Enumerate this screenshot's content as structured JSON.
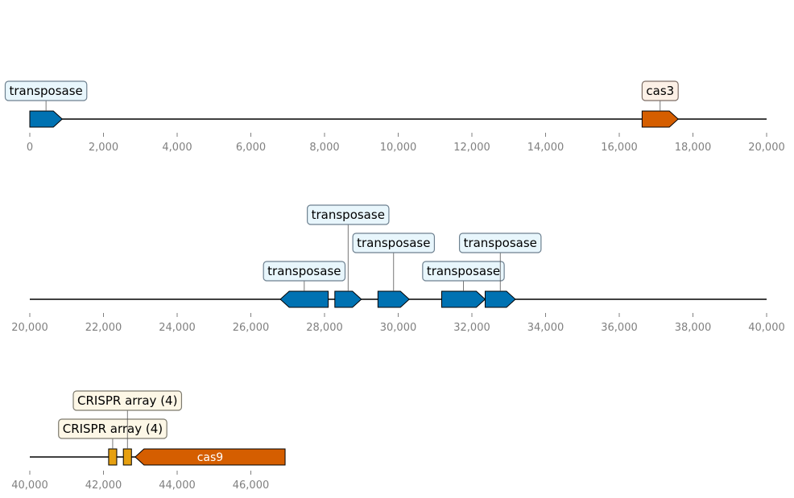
{
  "colors": {
    "transposase": "#0072b2",
    "cas": "#d55e00",
    "crispr": "#e6a010",
    "transposase_box_fill": "#e8f6fc",
    "transposase_box_stroke": "#6e8190",
    "cas_box_fill": "#fcf0e6",
    "cas_box_stroke": "#7d6e66",
    "crispr_box_fill": "#fdf7e6",
    "crispr_box_stroke": "#7d7a6e",
    "axis_text": "#808080"
  },
  "tracks": [
    {
      "range": [
        0,
        20000
      ],
      "ticks": [
        {
          "value": 0,
          "label": "0"
        },
        {
          "value": 2000,
          "label": "2,000"
        },
        {
          "value": 4000,
          "label": "4,000"
        },
        {
          "value": 6000,
          "label": "6,000"
        },
        {
          "value": 8000,
          "label": "8,000"
        },
        {
          "value": 10000,
          "label": "10,000"
        },
        {
          "value": 12000,
          "label": "12,000"
        },
        {
          "value": 14000,
          "label": "14,000"
        },
        {
          "value": 16000,
          "label": "16,000"
        },
        {
          "value": 18000,
          "label": "18,000"
        },
        {
          "value": 20000,
          "label": "20,000"
        }
      ],
      "features": [
        {
          "start": 0,
          "end": 880,
          "strand": 1,
          "type": "transposase",
          "label": "transposase",
          "level": 1
        },
        {
          "start": 16620,
          "end": 17600,
          "strand": 1,
          "type": "cas",
          "label": "cas3",
          "level": 1
        }
      ]
    },
    {
      "range": [
        20000,
        40000
      ],
      "ticks": [
        {
          "value": 20000,
          "label": "20,000"
        },
        {
          "value": 22000,
          "label": "22,000"
        },
        {
          "value": 24000,
          "label": "24,000"
        },
        {
          "value": 26000,
          "label": "26,000"
        },
        {
          "value": 28000,
          "label": "28,000"
        },
        {
          "value": 30000,
          "label": "30,000"
        },
        {
          "value": 32000,
          "label": "32,000"
        },
        {
          "value": 34000,
          "label": "34,000"
        },
        {
          "value": 36000,
          "label": "36,000"
        },
        {
          "value": 38000,
          "label": "38,000"
        },
        {
          "value": 40000,
          "label": "40,000"
        }
      ],
      "features": [
        {
          "start": 26800,
          "end": 28100,
          "strand": -1,
          "type": "transposase",
          "label": "transposase",
          "level": 1
        },
        {
          "start": 28280,
          "end": 29000,
          "strand": 1,
          "type": "transposase",
          "label": "transposase",
          "level": 3
        },
        {
          "start": 29450,
          "end": 30300,
          "strand": 1,
          "type": "transposase",
          "label": "transposase",
          "level": 2
        },
        {
          "start": 31180,
          "end": 32360,
          "strand": 1,
          "type": "transposase",
          "label": "transposase",
          "level": 1
        },
        {
          "start": 32360,
          "end": 33180,
          "strand": 1,
          "type": "transposase",
          "label": "transposase",
          "level": 2
        }
      ]
    },
    {
      "range": [
        40000,
        60000
      ],
      "ticks": [
        {
          "value": 40000,
          "label": "40,000"
        },
        {
          "value": 42000,
          "label": "42,000"
        },
        {
          "value": 44000,
          "label": "44,000"
        },
        {
          "value": 46000,
          "label": "46,000"
        }
      ],
      "line_end": 46930,
      "features": [
        {
          "start": 42140,
          "end": 42360,
          "strand": 0,
          "type": "crispr",
          "label": "CRISPR array (4)",
          "level": 1
        },
        {
          "start": 42540,
          "end": 42760,
          "strand": 0,
          "type": "crispr",
          "label": "CRISPR array (4)",
          "level": 2
        },
        {
          "start": 42860,
          "end": 46930,
          "strand": -1,
          "type": "cas",
          "label": "cas9",
          "inline": true
        }
      ]
    }
  ]
}
